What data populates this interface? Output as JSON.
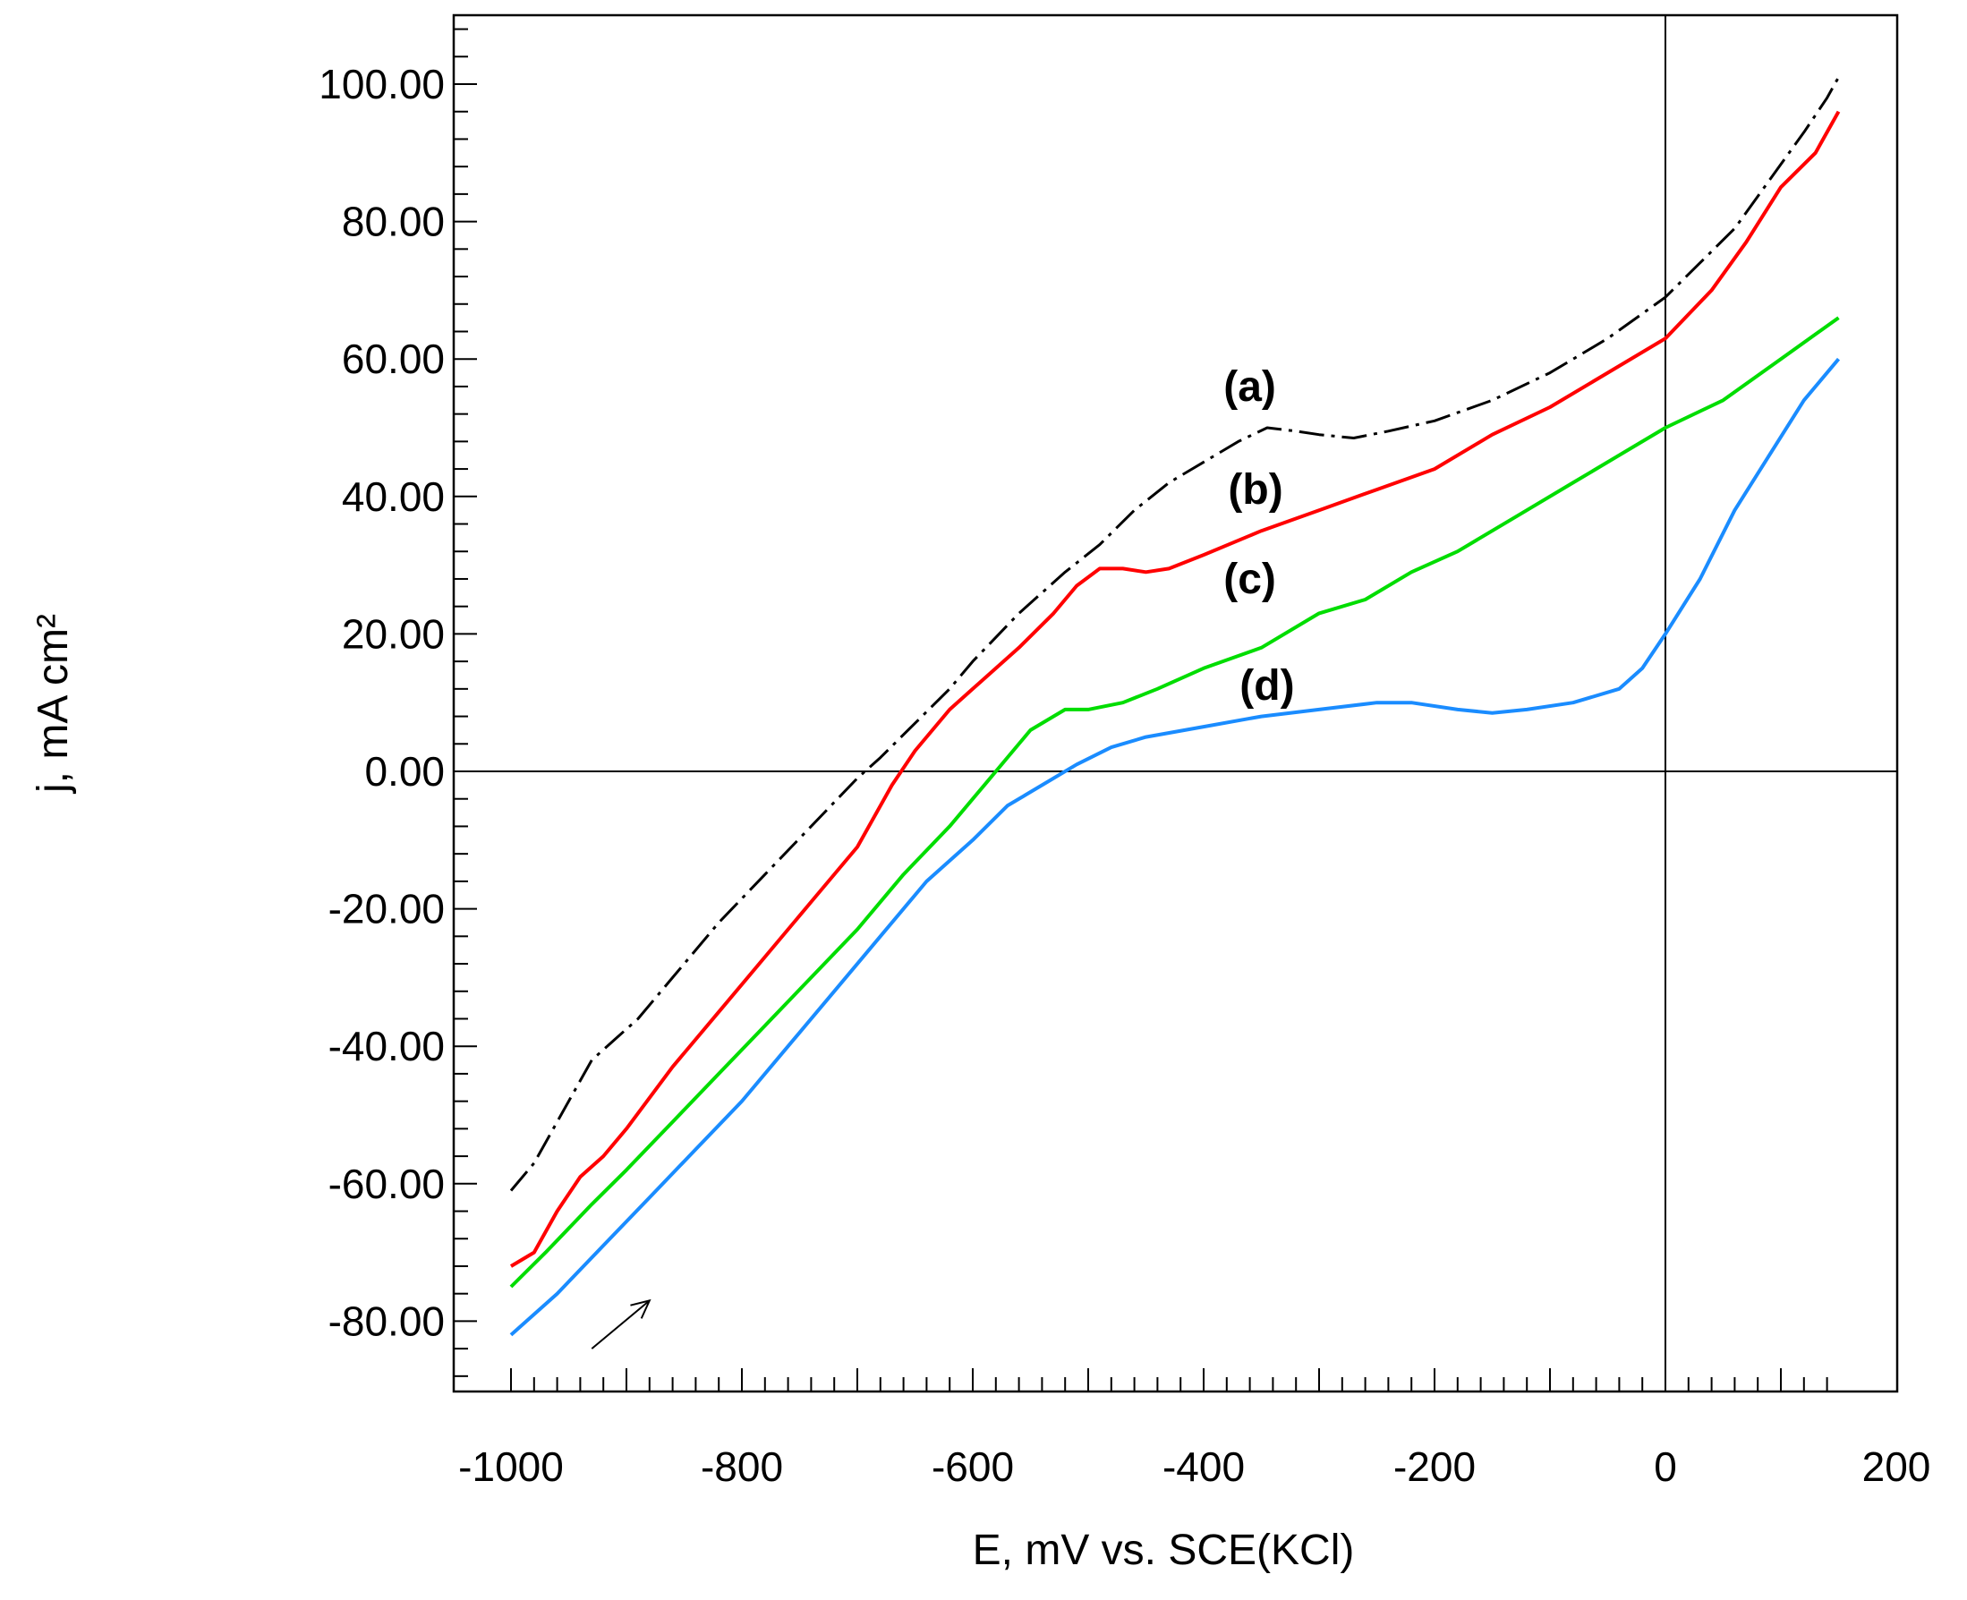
{
  "chart_data": {
    "type": "line",
    "xlabel": "E, mV vs. SCE(KCl)",
    "ylabel": "j, mA cm²",
    "xlim": [
      -1050,
      200
    ],
    "ylim": [
      -90,
      110
    ],
    "x_ticks": [
      -1000,
      -800,
      -600,
      -400,
      -200,
      0,
      200
    ],
    "x_tick_labels": [
      "-1000",
      "-800",
      "-600",
      "-400",
      "-200",
      "0",
      "200"
    ],
    "y_ticks": [
      100,
      80,
      60,
      40,
      20,
      0,
      -20,
      -40,
      -60,
      -80
    ],
    "y_tick_labels": [
      "100.00",
      "80.00",
      "60.00",
      "40.00",
      "20.00",
      "0.00",
      "-20.00",
      "-40.00",
      "-60.00",
      "-80.00"
    ],
    "zero_lines": {
      "x": 0,
      "y": 0
    },
    "annotations": [
      {
        "type": "arrow",
        "from": [
          -930,
          -84
        ],
        "to": [
          -880,
          -77
        ],
        "text": ""
      }
    ],
    "series": [
      {
        "name": "(a)",
        "color": "#000000",
        "style": "dashdot",
        "label_at": [
          -360,
          56
        ],
        "points": [
          [
            -1000,
            -61
          ],
          [
            -980,
            -57
          ],
          [
            -950,
            -48
          ],
          [
            -930,
            -42
          ],
          [
            -910,
            -39
          ],
          [
            -890,
            -36
          ],
          [
            -860,
            -30
          ],
          [
            -820,
            -22
          ],
          [
            -780,
            -15
          ],
          [
            -740,
            -8
          ],
          [
            -700,
            -1
          ],
          [
            -680,
            2
          ],
          [
            -650,
            7
          ],
          [
            -620,
            12
          ],
          [
            -600,
            16
          ],
          [
            -560,
            23
          ],
          [
            -520,
            29
          ],
          [
            -490,
            33
          ],
          [
            -460,
            38
          ],
          [
            -430,
            42
          ],
          [
            -400,
            45
          ],
          [
            -370,
            48
          ],
          [
            -345,
            50
          ],
          [
            -320,
            49.5
          ],
          [
            -300,
            49
          ],
          [
            -270,
            48.5
          ],
          [
            -240,
            49.5
          ],
          [
            -200,
            51
          ],
          [
            -150,
            54
          ],
          [
            -100,
            58
          ],
          [
            -50,
            63
          ],
          [
            0,
            69
          ],
          [
            30,
            74
          ],
          [
            60,
            79
          ],
          [
            90,
            86
          ],
          [
            120,
            93
          ],
          [
            140,
            98
          ],
          [
            150,
            101
          ]
        ]
      },
      {
        "name": "(b)",
        "color": "#ff0000",
        "style": "solid",
        "label_at": [
          -355,
          41
        ],
        "points": [
          [
            -1000,
            -72
          ],
          [
            -980,
            -70
          ],
          [
            -960,
            -64
          ],
          [
            -940,
            -59
          ],
          [
            -920,
            -56
          ],
          [
            -900,
            -52
          ],
          [
            -860,
            -43
          ],
          [
            -820,
            -35
          ],
          [
            -780,
            -27
          ],
          [
            -740,
            -19
          ],
          [
            -700,
            -11
          ],
          [
            -670,
            -2
          ],
          [
            -650,
            3
          ],
          [
            -620,
            9
          ],
          [
            -600,
            12
          ],
          [
            -560,
            18
          ],
          [
            -530,
            23
          ],
          [
            -510,
            27
          ],
          [
            -490,
            29.5
          ],
          [
            -470,
            29.5
          ],
          [
            -450,
            29
          ],
          [
            -430,
            29.5
          ],
          [
            -400,
            31.5
          ],
          [
            -350,
            35
          ],
          [
            -300,
            38
          ],
          [
            -250,
            41
          ],
          [
            -200,
            44
          ],
          [
            -150,
            49
          ],
          [
            -100,
            53
          ],
          [
            -50,
            58
          ],
          [
            0,
            63
          ],
          [
            40,
            70
          ],
          [
            70,
            77
          ],
          [
            100,
            85
          ],
          [
            130,
            90
          ],
          [
            150,
            96
          ]
        ]
      },
      {
        "name": "(c)",
        "color": "#00dd00",
        "style": "solid",
        "label_at": [
          -360,
          28
        ],
        "points": [
          [
            -1000,
            -75
          ],
          [
            -970,
            -70
          ],
          [
            -930,
            -63
          ],
          [
            -900,
            -58
          ],
          [
            -860,
            -51
          ],
          [
            -820,
            -44
          ],
          [
            -780,
            -37
          ],
          [
            -740,
            -30
          ],
          [
            -700,
            -23
          ],
          [
            -660,
            -15
          ],
          [
            -620,
            -8
          ],
          [
            -590,
            -2
          ],
          [
            -570,
            2
          ],
          [
            -550,
            6
          ],
          [
            -520,
            9
          ],
          [
            -500,
            9
          ],
          [
            -470,
            10
          ],
          [
            -440,
            12
          ],
          [
            -400,
            15
          ],
          [
            -350,
            18
          ],
          [
            -300,
            23
          ],
          [
            -260,
            25
          ],
          [
            -220,
            29
          ],
          [
            -180,
            32
          ],
          [
            -130,
            37
          ],
          [
            -80,
            42
          ],
          [
            -30,
            47
          ],
          [
            0,
            50
          ],
          [
            50,
            54
          ],
          [
            100,
            60
          ],
          [
            150,
            66
          ]
        ]
      },
      {
        "name": "(d)",
        "color": "#1a8cff",
        "style": "solid",
        "label_at": [
          -345,
          12.5
        ],
        "points": [
          [
            -1000,
            -82
          ],
          [
            -960,
            -76
          ],
          [
            -920,
            -69
          ],
          [
            -880,
            -62
          ],
          [
            -840,
            -55
          ],
          [
            -800,
            -48
          ],
          [
            -760,
            -40
          ],
          [
            -720,
            -32
          ],
          [
            -680,
            -24
          ],
          [
            -640,
            -16
          ],
          [
            -600,
            -10
          ],
          [
            -570,
            -5
          ],
          [
            -540,
            -2
          ],
          [
            -510,
            1
          ],
          [
            -480,
            3.5
          ],
          [
            -450,
            5
          ],
          [
            -400,
            6.5
          ],
          [
            -350,
            8
          ],
          [
            -300,
            9
          ],
          [
            -250,
            10
          ],
          [
            -220,
            10
          ],
          [
            -180,
            9
          ],
          [
            -150,
            8.5
          ],
          [
            -120,
            9
          ],
          [
            -80,
            10
          ],
          [
            -40,
            12
          ],
          [
            -20,
            15
          ],
          [
            0,
            20
          ],
          [
            30,
            28
          ],
          [
            60,
            38
          ],
          [
            90,
            46
          ],
          [
            120,
            54
          ],
          [
            150,
            60
          ]
        ]
      }
    ]
  }
}
